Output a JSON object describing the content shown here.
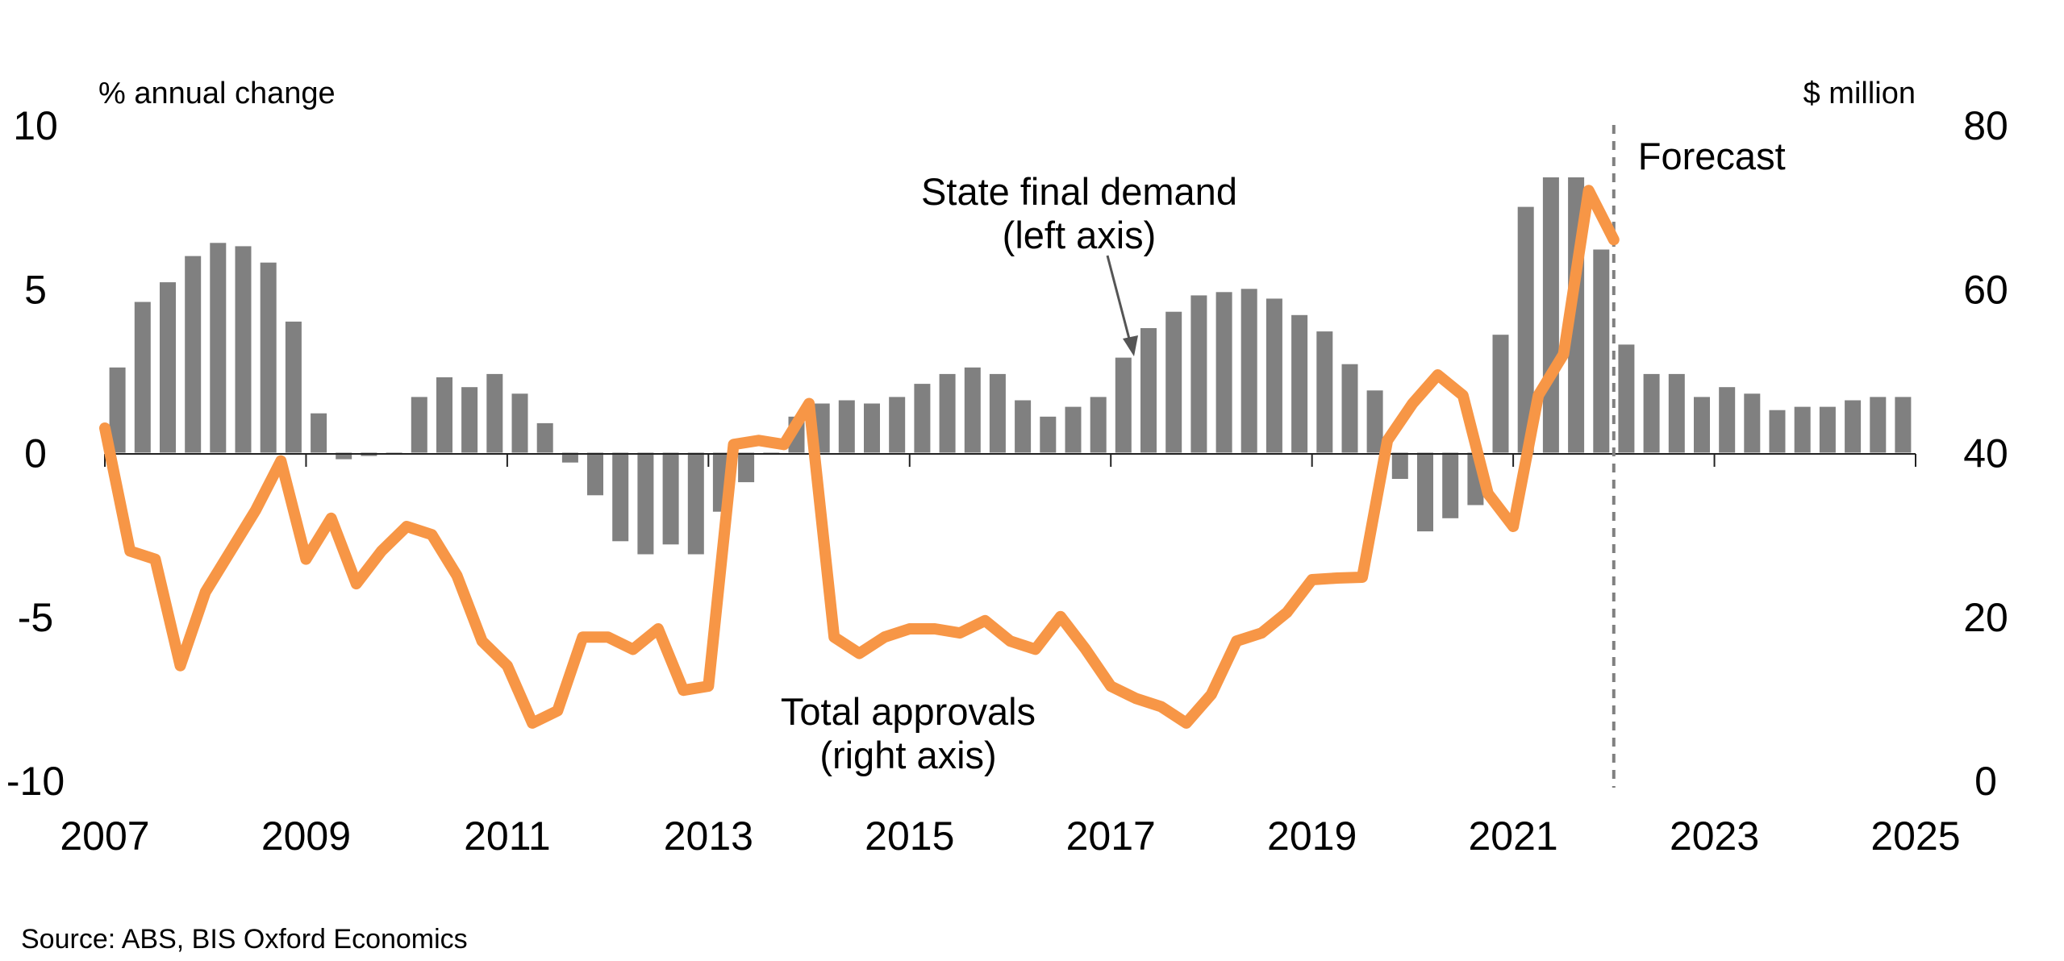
{
  "chart_data": {
    "type": "bar",
    "left_unit_label": "% annual change",
    "right_unit_label": "$ million",
    "x_axis": {
      "ticks": [
        "2007",
        "2009",
        "2011",
        "2013",
        "2015",
        "2017",
        "2019",
        "2021",
        "2023",
        "2025"
      ],
      "range": [
        2007,
        2025
      ]
    },
    "y_left": {
      "ticks": [
        "10",
        "5",
        "0",
        "-5",
        "-10"
      ],
      "range": [
        -10,
        10
      ]
    },
    "y_right": {
      "ticks": [
        "80",
        "60",
        "40",
        "20",
        "0"
      ],
      "range": [
        0,
        80
      ]
    },
    "grid": false,
    "legend": "none",
    "forecast": {
      "label": "Forecast",
      "x": 2022.0
    },
    "annotations": {
      "bars_line1": "State final demand",
      "bars_line2": "(left axis)",
      "line_line1": "Total approvals",
      "line_line2": "(right axis)"
    },
    "series": [
      {
        "name": "State final demand",
        "axis": "left",
        "type": "bar",
        "color": "#808080",
        "x": [
          2007.25,
          2007.5,
          2007.75,
          2008.0,
          2008.25,
          2008.5,
          2008.75,
          2009.0,
          2009.25,
          2009.5,
          2009.75,
          2010.0,
          2010.25,
          2010.5,
          2010.75,
          2011.0,
          2011.25,
          2011.5,
          2011.75,
          2012.0,
          2012.25,
          2012.5,
          2012.75,
          2013.0,
          2013.25,
          2013.5,
          2013.75,
          2014.0,
          2014.25,
          2014.5,
          2014.75,
          2015.0,
          2015.25,
          2015.5,
          2015.75,
          2016.0,
          2016.25,
          2016.5,
          2016.75,
          2017.0,
          2017.25,
          2017.5,
          2017.75,
          2018.0,
          2018.25,
          2018.5,
          2018.75,
          2019.0,
          2019.25,
          2019.5,
          2019.75,
          2020.0,
          2020.25,
          2020.5,
          2020.75,
          2021.0,
          2021.25,
          2021.5,
          2021.75,
          2022.0,
          2022.25,
          2022.5,
          2022.75,
          2023.0,
          2023.25,
          2023.5,
          2023.75,
          2024.0,
          2024.25,
          2024.5,
          2024.75,
          2025.0
        ],
        "values": [
          2.6,
          4.6,
          5.2,
          6.0,
          6.4,
          6.3,
          5.8,
          4.0,
          1.2,
          -0.2,
          -0.1,
          0.0,
          1.7,
          2.3,
          2.0,
          2.4,
          1.8,
          0.9,
          -0.3,
          -1.3,
          -2.7,
          -3.1,
          -2.8,
          -3.1,
          -1.8,
          -0.9,
          0.0,
          1.1,
          1.5,
          1.6,
          1.5,
          1.7,
          2.1,
          2.4,
          2.6,
          2.4,
          1.6,
          1.1,
          1.4,
          1.7,
          2.9,
          3.8,
          4.3,
          4.8,
          4.9,
          5.0,
          4.7,
          4.2,
          3.7,
          2.7,
          1.9,
          -0.8,
          -2.4,
          -2.0,
          -1.6,
          3.6,
          7.5,
          8.4,
          8.4,
          6.2,
          3.3,
          2.4,
          2.4,
          1.7,
          2.0,
          1.8,
          1.3,
          1.4,
          1.4,
          1.6,
          1.7,
          1.7
        ]
      },
      {
        "name": "Total approvals",
        "axis": "right",
        "type": "line",
        "color": "#F79646",
        "x": [
          2007.0,
          2007.25,
          2007.5,
          2007.75,
          2008.0,
          2008.25,
          2008.5,
          2008.75,
          2009.0,
          2009.25,
          2009.5,
          2009.75,
          2010.0,
          2010.25,
          2010.5,
          2010.75,
          2011.0,
          2011.25,
          2011.5,
          2011.75,
          2012.0,
          2012.25,
          2012.5,
          2012.75,
          2013.0,
          2013.25,
          2013.5,
          2013.75,
          2014.0,
          2014.25,
          2014.5,
          2014.75,
          2015.0,
          2015.25,
          2015.5,
          2015.75,
          2016.0,
          2016.25,
          2016.5,
          2016.75,
          2017.0,
          2017.25,
          2017.5,
          2017.75,
          2018.0,
          2018.25,
          2018.5,
          2018.75,
          2019.0,
          2019.25,
          2019.5,
          2019.75,
          2020.0,
          2020.25,
          2020.5,
          2020.75,
          2021.0,
          2021.25,
          2021.5,
          2021.75,
          2022.0
        ],
        "values": [
          43,
          28,
          27,
          14,
          23,
          28,
          33,
          39,
          27,
          32,
          24,
          28,
          31,
          30,
          25,
          17,
          14,
          7,
          8.5,
          17.5,
          17.5,
          16,
          18.5,
          11,
          11.5,
          41,
          41.5,
          41,
          46,
          17.5,
          15.5,
          17.5,
          18.5,
          18.5,
          18,
          19.5,
          17,
          16,
          20,
          16,
          11.5,
          10,
          9,
          7,
          10.5,
          17,
          18,
          20.5,
          24.5,
          24.7,
          24.8,
          41.5,
          46,
          49.5,
          47,
          35,
          31,
          47,
          52,
          72,
          66
        ]
      }
    ],
    "source": "Source: ABS, BIS Oxford Economics"
  }
}
